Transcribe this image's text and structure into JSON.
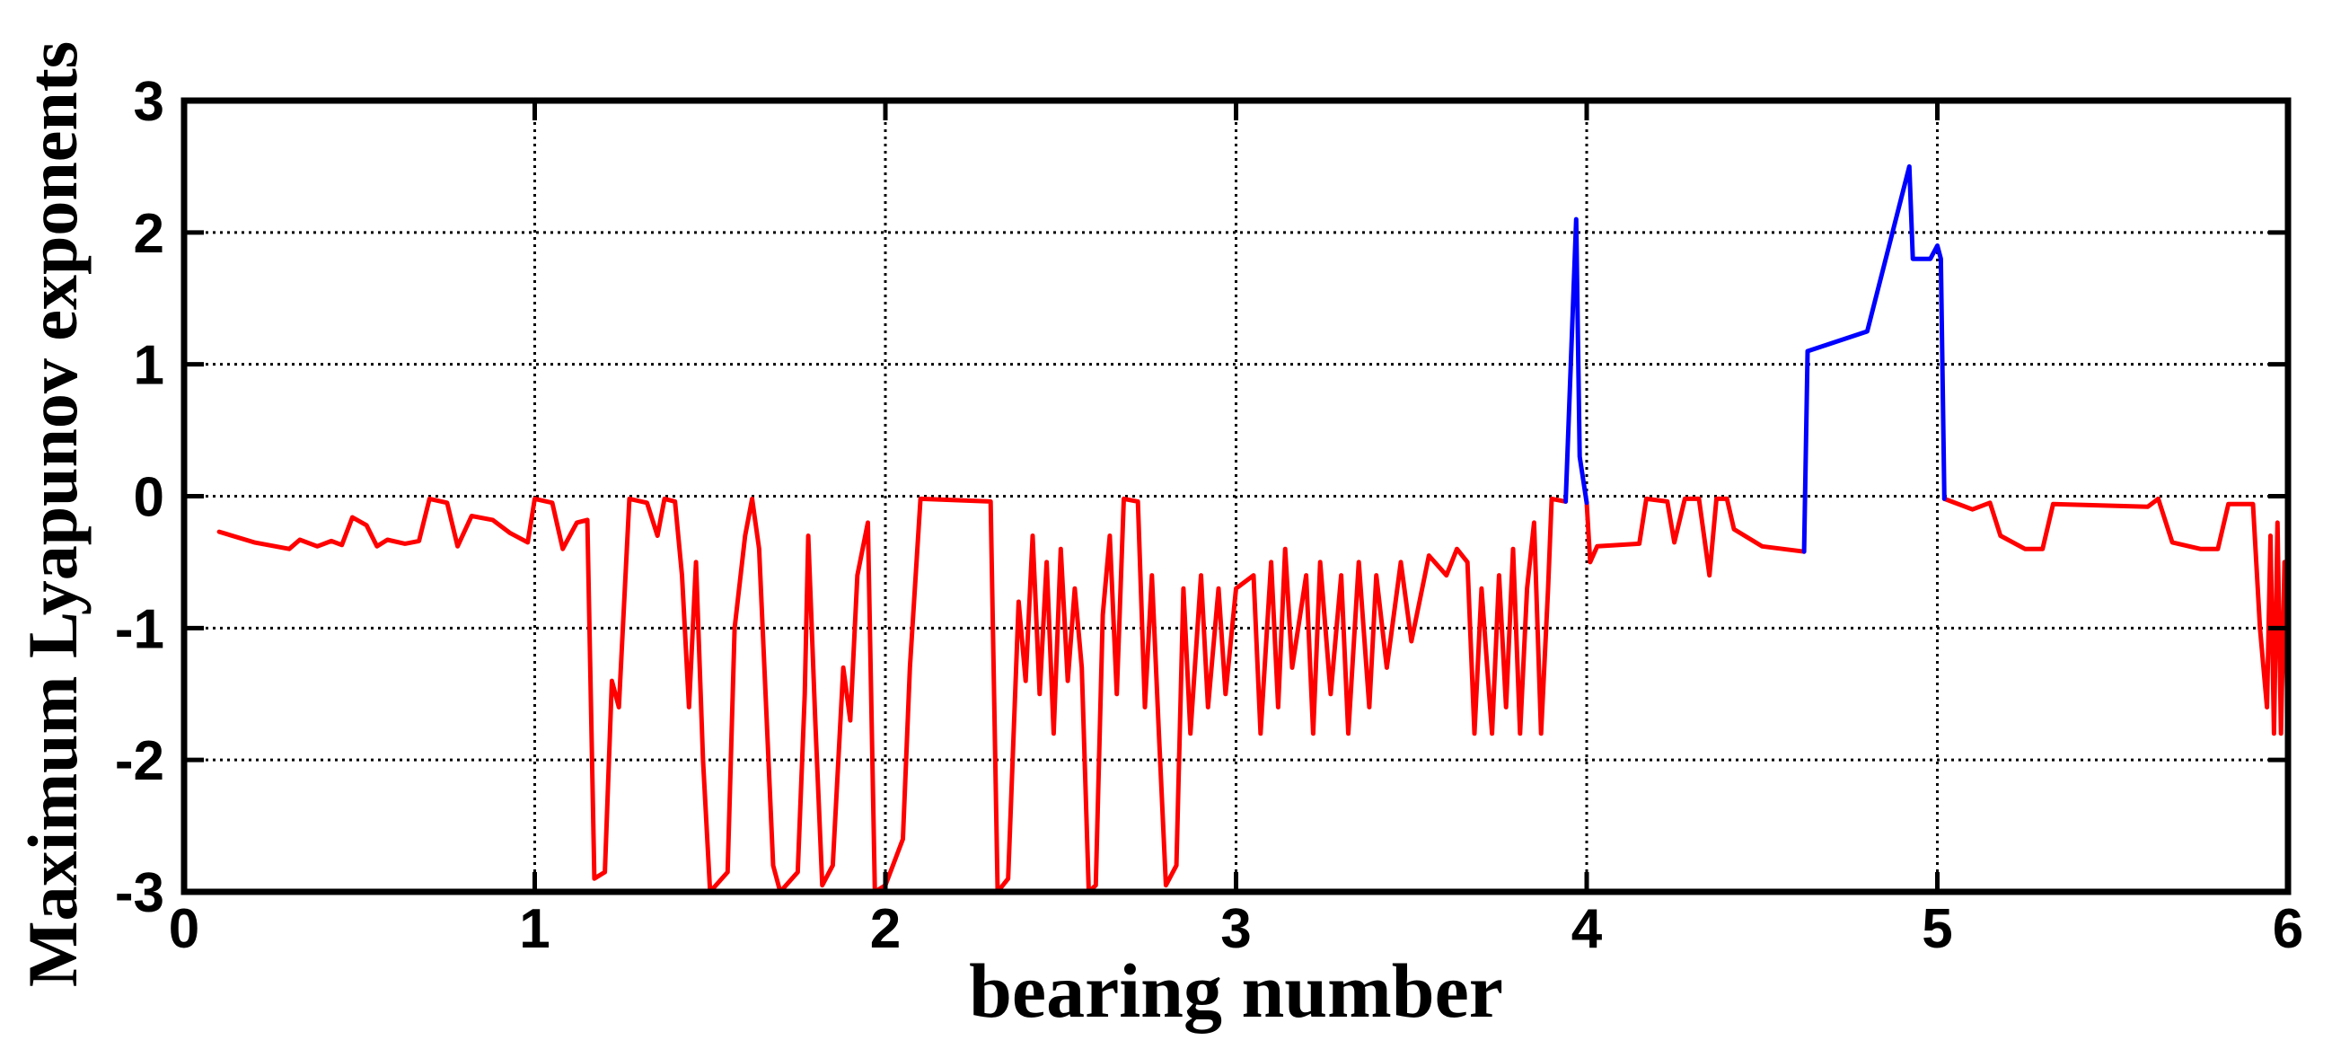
{
  "chart_data": {
    "type": "line",
    "title": "",
    "xlabel": "bearing number",
    "ylabel": "Maximum Lyapunov exponents",
    "xlim": [
      0,
      6
    ],
    "ylim": [
      -3,
      3
    ],
    "xticks": [
      0,
      1,
      2,
      3,
      4,
      5,
      6
    ],
    "xtick_labels": [
      "0",
      "1",
      "2",
      "3",
      "4",
      "5",
      "6"
    ],
    "yticks": [
      -3,
      -2,
      -1,
      0,
      1,
      2,
      3
    ],
    "ytick_labels": [
      "-3",
      "-2",
      "-1",
      "0",
      "1",
      "2",
      "3"
    ],
    "grid": true,
    "legend": "none",
    "series": [
      {
        "color": "#ff0000",
        "segments": [
          [
            [
              0.1,
              -0.27
            ],
            [
              0.2,
              -0.35
            ],
            [
              0.3,
              -0.4
            ],
            [
              0.33,
              -0.33
            ],
            [
              0.38,
              -0.38
            ],
            [
              0.42,
              -0.34
            ],
            [
              0.45,
              -0.37
            ],
            [
              0.48,
              -0.16
            ],
            [
              0.52,
              -0.22
            ],
            [
              0.55,
              -0.38
            ],
            [
              0.58,
              -0.33
            ],
            [
              0.63,
              -0.36
            ],
            [
              0.67,
              -0.34
            ],
            [
              0.7,
              -0.02
            ],
            [
              0.75,
              -0.05
            ],
            [
              0.78,
              -0.38
            ],
            [
              0.82,
              -0.15
            ],
            [
              0.88,
              -0.18
            ],
            [
              0.93,
              -0.28
            ],
            [
              0.98,
              -0.35
            ],
            [
              1.0,
              -0.02
            ],
            [
              1.05,
              -0.05
            ],
            [
              1.08,
              -0.4
            ],
            [
              1.12,
              -0.2
            ],
            [
              1.15,
              -0.18
            ],
            [
              1.17,
              -2.9
            ],
            [
              1.2,
              -2.85
            ],
            [
              1.22,
              -1.4
            ],
            [
              1.24,
              -1.6
            ],
            [
              1.27,
              -0.02
            ],
            [
              1.32,
              -0.05
            ],
            [
              1.35,
              -0.3
            ],
            [
              1.37,
              -0.02
            ],
            [
              1.4,
              -0.04
            ],
            [
              1.42,
              -0.6
            ],
            [
              1.44,
              -1.6
            ],
            [
              1.46,
              -0.5
            ],
            [
              1.48,
              -2.0
            ],
            [
              1.5,
              -3.0
            ],
            [
              1.55,
              -2.85
            ],
            [
              1.57,
              -1.0
            ],
            [
              1.6,
              -0.3
            ],
            [
              1.62,
              -0.02
            ],
            [
              1.64,
              -0.4
            ],
            [
              1.66,
              -1.6
            ],
            [
              1.68,
              -2.8
            ],
            [
              1.7,
              -3.0
            ],
            [
              1.75,
              -2.85
            ],
            [
              1.77,
              -1.5
            ],
            [
              1.78,
              -0.3
            ],
            [
              1.8,
              -1.7
            ],
            [
              1.82,
              -2.95
            ],
            [
              1.85,
              -2.8
            ],
            [
              1.88,
              -1.3
            ],
            [
              1.9,
              -1.7
            ],
            [
              1.92,
              -0.6
            ],
            [
              1.95,
              -0.2
            ],
            [
              1.97,
              -3.0
            ],
            [
              2.0,
              -2.95
            ],
            [
              2.05,
              -2.6
            ],
            [
              2.07,
              -1.3
            ],
            [
              2.1,
              -0.02
            ],
            [
              2.3,
              -0.04
            ],
            [
              2.32,
              -3.0
            ],
            [
              2.35,
              -2.9
            ],
            [
              2.38,
              -0.8
            ],
            [
              2.4,
              -1.4
            ],
            [
              2.42,
              -0.3
            ],
            [
              2.44,
              -1.5
            ],
            [
              2.46,
              -0.5
            ],
            [
              2.48,
              -1.8
            ],
            [
              2.5,
              -0.4
            ],
            [
              2.52,
              -1.4
            ],
            [
              2.54,
              -0.7
            ],
            [
              2.56,
              -1.3
            ],
            [
              2.58,
              -3.0
            ],
            [
              2.6,
              -2.95
            ],
            [
              2.62,
              -0.9
            ],
            [
              2.64,
              -0.3
            ],
            [
              2.66,
              -1.5
            ],
            [
              2.68,
              -0.02
            ],
            [
              2.72,
              -0.04
            ],
            [
              2.74,
              -1.6
            ],
            [
              2.76,
              -0.6
            ],
            [
              2.78,
              -1.8
            ],
            [
              2.8,
              -2.95
            ],
            [
              2.83,
              -2.8
            ],
            [
              2.85,
              -0.7
            ],
            [
              2.87,
              -1.8
            ],
            [
              2.9,
              -0.6
            ],
            [
              2.92,
              -1.6
            ],
            [
              2.95,
              -0.7
            ],
            [
              2.97,
              -1.5
            ],
            [
              3.0,
              -0.7
            ],
            [
              3.05,
              -0.6
            ],
            [
              3.07,
              -1.8
            ],
            [
              3.1,
              -0.5
            ],
            [
              3.12,
              -1.6
            ],
            [
              3.14,
              -0.4
            ],
            [
              3.16,
              -1.3
            ],
            [
              3.2,
              -0.6
            ],
            [
              3.22,
              -1.8
            ],
            [
              3.24,
              -0.5
            ],
            [
              3.27,
              -1.5
            ],
            [
              3.3,
              -0.6
            ],
            [
              3.32,
              -1.8
            ],
            [
              3.35,
              -0.5
            ],
            [
              3.38,
              -1.6
            ],
            [
              3.4,
              -0.6
            ],
            [
              3.43,
              -1.3
            ],
            [
              3.47,
              -0.5
            ],
            [
              3.5,
              -1.1
            ],
            [
              3.55,
              -0.45
            ],
            [
              3.6,
              -0.6
            ],
            [
              3.63,
              -0.4
            ],
            [
              3.66,
              -0.5
            ],
            [
              3.68,
              -1.8
            ],
            [
              3.7,
              -0.7
            ],
            [
              3.73,
              -1.8
            ],
            [
              3.75,
              -0.6
            ],
            [
              3.77,
              -1.6
            ],
            [
              3.79,
              -0.4
            ],
            [
              3.81,
              -1.8
            ],
            [
              3.83,
              -0.7
            ],
            [
              3.85,
              -0.2
            ],
            [
              3.87,
              -1.8
            ],
            [
              3.89,
              -0.7
            ],
            [
              3.9,
              -0.02
            ],
            [
              3.94,
              -0.04
            ]
          ],
          [
            [
              4.0,
              -0.05
            ],
            [
              4.01,
              -0.5
            ],
            [
              4.03,
              -0.38
            ],
            [
              4.15,
              -0.36
            ],
            [
              4.17,
              -0.02
            ],
            [
              4.23,
              -0.04
            ],
            [
              4.25,
              -0.35
            ],
            [
              4.28,
              -0.02
            ],
            [
              4.32,
              -0.02
            ],
            [
              4.35,
              -0.6
            ],
            [
              4.37,
              -0.02
            ],
            [
              4.4,
              -0.02
            ],
            [
              4.42,
              -0.25
            ],
            [
              4.5,
              -0.38
            ],
            [
              4.62,
              -0.42
            ]
          ],
          [
            [
              5.02,
              -0.02
            ],
            [
              5.1,
              -0.1
            ],
            [
              5.15,
              -0.05
            ],
            [
              5.18,
              -0.3
            ],
            [
              5.25,
              -0.4
            ],
            [
              5.3,
              -0.4
            ],
            [
              5.33,
              -0.06
            ],
            [
              5.6,
              -0.08
            ],
            [
              5.63,
              -0.02
            ],
            [
              5.67,
              -0.35
            ],
            [
              5.75,
              -0.4
            ],
            [
              5.8,
              -0.4
            ],
            [
              5.83,
              -0.06
            ],
            [
              5.9,
              -0.06
            ],
            [
              5.92,
              -1.0
            ],
            [
              5.94,
              -1.6
            ],
            [
              5.95,
              -0.3
            ],
            [
              5.96,
              -1.8
            ],
            [
              5.97,
              -0.2
            ],
            [
              5.98,
              -1.8
            ],
            [
              5.99,
              -0.5
            ],
            [
              6.0,
              -1.8
            ]
          ]
        ]
      },
      {
        "color": "#0000ff",
        "segments": [
          [
            [
              3.94,
              -0.04
            ],
            [
              3.97,
              2.1
            ],
            [
              3.98,
              0.3
            ],
            [
              4.0,
              -0.05
            ]
          ],
          [
            [
              4.62,
              -0.42
            ],
            [
              4.63,
              1.1
            ],
            [
              4.8,
              1.25
            ],
            [
              4.92,
              2.5
            ],
            [
              4.93,
              1.8
            ],
            [
              4.98,
              1.8
            ],
            [
              5.0,
              1.9
            ],
            [
              5.01,
              1.8
            ],
            [
              5.02,
              -0.02
            ]
          ]
        ]
      }
    ]
  }
}
